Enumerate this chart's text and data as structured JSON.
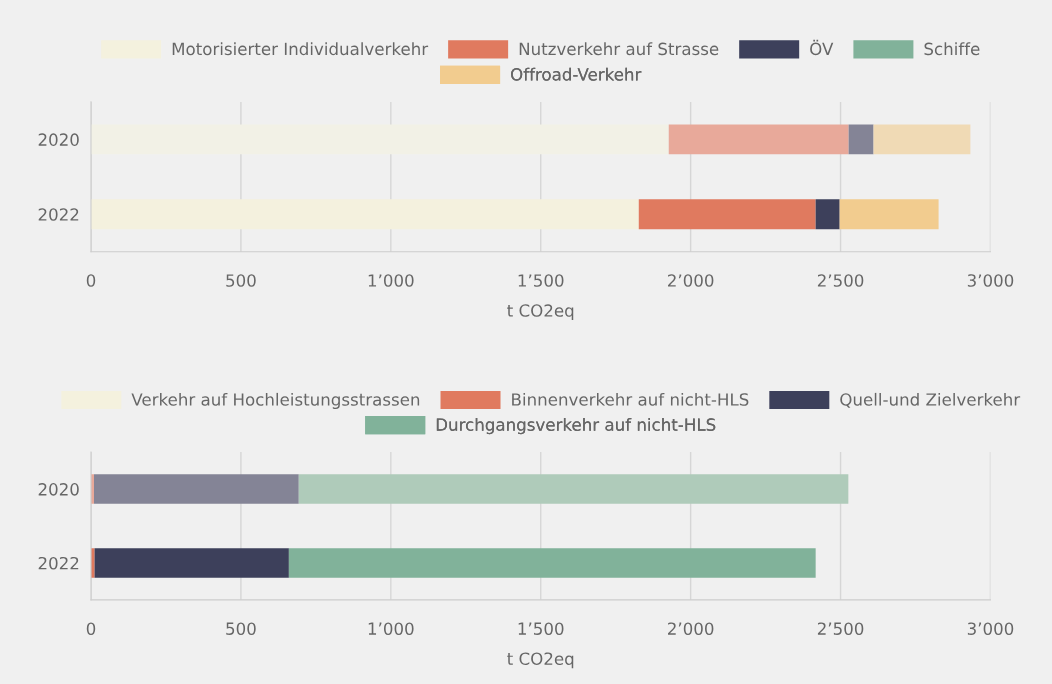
{
  "chart_data": [
    {
      "type": "bar",
      "orientation": "horizontal",
      "stacked": true,
      "categories": [
        "2020",
        "2022"
      ],
      "xlabel": "t CO2eq",
      "xlim": [
        0,
        3000
      ],
      "xticks": [
        {
          "value": 0,
          "label": "0"
        },
        {
          "value": 500,
          "label": "500"
        },
        {
          "value": 1000,
          "label": "1’000"
        },
        {
          "value": 1500,
          "label": "1’500"
        },
        {
          "value": 2000,
          "label": "2’000"
        },
        {
          "value": 2500,
          "label": "2’500"
        },
        {
          "value": 3000,
          "label": "3’000"
        }
      ],
      "grid": "x",
      "legend": "top",
      "series": [
        {
          "name": "Motorisierter Individualverkehr",
          "color": "#f4f1de",
          "colors": [
            "#f2f1e6",
            "#f4f1de"
          ],
          "values": [
            1927,
            1827
          ]
        },
        {
          "name": "Nutzverkehr auf Strasse",
          "color": "#e07a5f",
          "colors": [
            "#e8a99a",
            "#e07a5f"
          ],
          "values": [
            600,
            590
          ]
        },
        {
          "name": "ÖV",
          "color": "#3d405b",
          "colors": [
            "#848496",
            "#3d405b"
          ],
          "values": [
            83,
            80
          ]
        },
        {
          "name": "Schiffe",
          "color": "#81b29a",
          "colors": [
            "#afcbba",
            "#81b29a"
          ],
          "values": [
            0,
            0
          ]
        },
        {
          "name": "Offroad-Verkehr",
          "color": "#f2cc8f",
          "colors": [
            "#f0dab5",
            "#f2cc8f"
          ],
          "values": [
            323,
            330
          ]
        }
      ]
    },
    {
      "type": "bar",
      "orientation": "horizontal",
      "stacked": true,
      "categories": [
        "2020",
        "2022"
      ],
      "xlabel": "t CO2eq",
      "xlim": [
        0,
        3000
      ],
      "xticks": [
        {
          "value": 0,
          "label": "0"
        },
        {
          "value": 500,
          "label": "500"
        },
        {
          "value": 1000,
          "label": "1’000"
        },
        {
          "value": 1500,
          "label": "1’500"
        },
        {
          "value": 2000,
          "label": "2’000"
        },
        {
          "value": 2500,
          "label": "2’500"
        },
        {
          "value": 3000,
          "label": "3’000"
        }
      ],
      "grid": "x",
      "legend": "top",
      "series": [
        {
          "name": "Verkehr auf Hochleistungsstrassen",
          "color": "#f4f1de",
          "colors": [
            "#f2f1e6",
            "#f4f1de"
          ],
          "values": [
            0,
            0
          ]
        },
        {
          "name": "Binnenverkehr auf nicht-HLS",
          "color": "#e07a5f",
          "colors": [
            "#e8a99a",
            "#e07a5f"
          ],
          "values": [
            10,
            12
          ]
        },
        {
          "name": "Quell-und Zielverkehr",
          "color": "#3d405b",
          "colors": [
            "#848496",
            "#3d405b"
          ],
          "values": [
            683,
            648
          ]
        },
        {
          "name": "Durchgangsverkehr auf nicht-HLS",
          "color": "#81b29a",
          "colors": [
            "#afcbba",
            "#81b29a"
          ],
          "values": [
            1833,
            1757
          ]
        }
      ]
    }
  ]
}
